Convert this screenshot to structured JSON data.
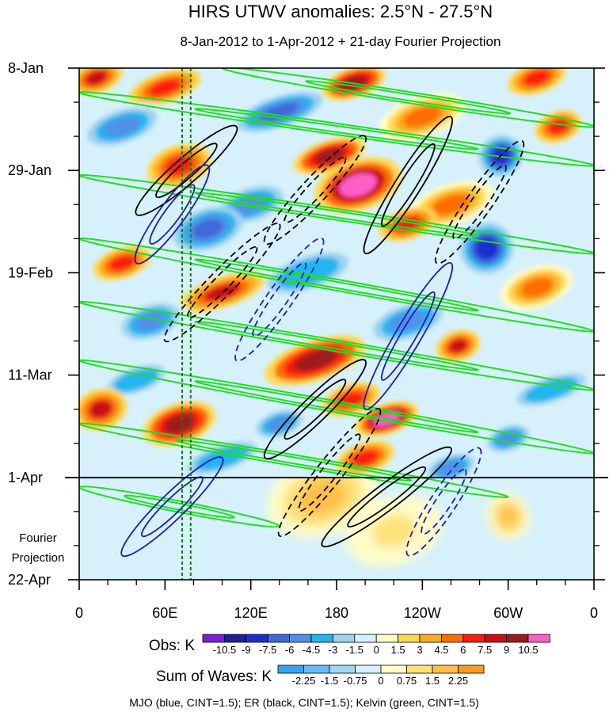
{
  "chart_data": {
    "type": "heatmap",
    "title": "HIRS UTWV anomalies: 2.5°N - 27.5°N",
    "subtitle": "8-Jan-2012 to 1-Apr-2012 + 21-day Fourier Projection",
    "x_tick_labels": [
      "0",
      "60E",
      "120E",
      "180",
      "120W",
      "60W",
      "0"
    ],
    "x_tick_degrees_east": [
      0,
      60,
      120,
      180,
      240,
      300,
      360
    ],
    "x_range_degrees_east": [
      0,
      360
    ],
    "y_tick_labels": [
      "8-Jan",
      "29-Jan",
      "19-Feb",
      "11-Mar",
      "1-Apr",
      "22-Apr"
    ],
    "y_tick_days_since_8jan": [
      0,
      21,
      42,
      63,
      84,
      105
    ],
    "y_range_days_since_8jan": [
      0,
      105
    ],
    "observation_end_day": 84,
    "fourier_projection_label": [
      "Fourier",
      "Projection"
    ],
    "dashed_reference_longitudes_east": [
      72,
      78
    ],
    "obs_colorbar": {
      "label": "Obs: K",
      "levels": [
        "-10.5",
        "-9",
        "-7.5",
        "-6",
        "-4.5",
        "-3",
        "-1.5",
        "0",
        "1.5",
        "3",
        "4.5",
        "6",
        "7.5",
        "9",
        "10.5"
      ],
      "colors": [
        "#7a1fd6",
        "#1e1e9c",
        "#1f2fcd",
        "#3f69d9",
        "#4f91e8",
        "#22b5ee",
        "#9fd3f1",
        "#d6f1fb",
        "#fffcc8",
        "#ffd84f",
        "#ffaa22",
        "#ff6d00",
        "#ff1a10",
        "#cc0f15",
        "#9c1b1b",
        "#ff5fc6"
      ]
    },
    "waves_colorbar": {
      "label": "Sum of Waves: K",
      "levels": [
        "-2.25",
        "-1.5",
        "-0.75",
        "0",
        "0.75",
        "1.5",
        "2.25"
      ],
      "colors": [
        "#3aa3ee",
        "#67bdf3",
        "#9fd6f5",
        "#d6f1fb",
        "#fffcc8",
        "#ffe17a",
        "#ffc04a",
        "#ff9a22"
      ]
    },
    "contours": [
      {
        "name": "MJO",
        "color": "#1c1cb4",
        "cint": 1.5
      },
      {
        "name": "ER",
        "color": "#000000",
        "cint": 1.5
      },
      {
        "name": "Kelvin",
        "color": "#22dd22",
        "cint": 1.5
      }
    ],
    "caption": "MJO (blue, CINT=1.5); ER (black, CINT=1.5); Kelvin (green, CINT=1.5)",
    "anomaly_features": [
      {
        "lon": 12,
        "day": 2,
        "value": 7.5,
        "rx": 18,
        "ry": 3
      },
      {
        "lon": 60,
        "day": 4,
        "value": 6,
        "rx": 25,
        "ry": 3
      },
      {
        "lon": 192,
        "day": 3,
        "value": 9,
        "rx": 22,
        "ry": 3
      },
      {
        "lon": 320,
        "day": 2,
        "value": 6,
        "rx": 20,
        "ry": 3
      },
      {
        "lon": 30,
        "day": 12,
        "value": -6,
        "rx": 30,
        "ry": 4
      },
      {
        "lon": 140,
        "day": 9,
        "value": -7.5,
        "rx": 30,
        "ry": 3
      },
      {
        "lon": 240,
        "day": 10,
        "value": 4.5,
        "rx": 30,
        "ry": 4
      },
      {
        "lon": 335,
        "day": 12,
        "value": 6,
        "rx": 16,
        "ry": 3
      },
      {
        "lon": 175,
        "day": 18,
        "value": 9,
        "rx": 25,
        "ry": 3
      },
      {
        "lon": 295,
        "day": 18,
        "value": -9,
        "rx": 15,
        "ry": 4
      },
      {
        "lon": 70,
        "day": 20,
        "value": 6,
        "rx": 22,
        "ry": 4
      },
      {
        "lon": 195,
        "day": 24,
        "value": 10.5,
        "rx": 30,
        "ry": 5
      },
      {
        "lon": 120,
        "day": 28,
        "value": -6,
        "rx": 28,
        "ry": 4
      },
      {
        "lon": 260,
        "day": 28,
        "value": 4.5,
        "rx": 30,
        "ry": 4
      },
      {
        "lon": 230,
        "day": 32,
        "value": 6,
        "rx": 20,
        "ry": 3
      },
      {
        "lon": 90,
        "day": 33,
        "value": -7.5,
        "rx": 24,
        "ry": 4
      },
      {
        "lon": 285,
        "day": 37,
        "value": -9,
        "rx": 18,
        "ry": 5
      },
      {
        "lon": 30,
        "day": 40,
        "value": 6,
        "rx": 20,
        "ry": 3
      },
      {
        "lon": 160,
        "day": 42,
        "value": -4.5,
        "rx": 35,
        "ry": 4
      },
      {
        "lon": 100,
        "day": 46,
        "value": 7.5,
        "rx": 30,
        "ry": 3
      },
      {
        "lon": 320,
        "day": 45,
        "value": 4.5,
        "rx": 25,
        "ry": 4
      },
      {
        "lon": 50,
        "day": 52,
        "value": -6,
        "rx": 25,
        "ry": 4
      },
      {
        "lon": 230,
        "day": 52,
        "value": -6,
        "rx": 30,
        "ry": 4
      },
      {
        "lon": 165,
        "day": 60,
        "value": 9,
        "rx": 35,
        "ry": 4
      },
      {
        "lon": 265,
        "day": 57,
        "value": 7.5,
        "rx": 15,
        "ry": 3
      },
      {
        "lon": 40,
        "day": 64,
        "value": -4.5,
        "rx": 25,
        "ry": 3
      },
      {
        "lon": 330,
        "day": 66,
        "value": -4.5,
        "rx": 30,
        "ry": 3
      },
      {
        "lon": 190,
        "day": 68,
        "value": 6,
        "rx": 20,
        "ry": 3
      },
      {
        "lon": 15,
        "day": 70,
        "value": 7.5,
        "rx": 18,
        "ry": 4
      },
      {
        "lon": 70,
        "day": 73,
        "value": 9,
        "rx": 25,
        "ry": 4
      },
      {
        "lon": 215,
        "day": 72,
        "value": 10.5,
        "rx": 22,
        "ry": 3
      },
      {
        "lon": 140,
        "day": 73,
        "value": -6,
        "rx": 20,
        "ry": 3
      },
      {
        "lon": 300,
        "day": 76,
        "value": -6,
        "rx": 18,
        "ry": 3
      },
      {
        "lon": 100,
        "day": 80,
        "value": -4.5,
        "rx": 30,
        "ry": 3
      },
      {
        "lon": 200,
        "day": 80,
        "value": 6,
        "rx": 20,
        "ry": 3
      },
      {
        "lon": 260,
        "day": 82,
        "value": -6,
        "rx": 20,
        "ry": 3
      },
      {
        "lon": 170,
        "day": 88,
        "value": 1.5,
        "rx": 40,
        "ry": 8
      },
      {
        "lon": 50,
        "day": 96,
        "value": -0.75,
        "rx": 50,
        "ry": 6
      },
      {
        "lon": 220,
        "day": 95,
        "value": 0.75,
        "rx": 35,
        "ry": 7
      },
      {
        "lon": 300,
        "day": 92,
        "value": 1.5,
        "rx": 15,
        "ry": 5
      },
      {
        "lon": 320,
        "day": 100,
        "value": -0.75,
        "rx": 40,
        "ry": 5
      }
    ],
    "contour_tracks": [
      {
        "wave": "Kelvin",
        "sign": "pos",
        "lon0": 0,
        "day0": 5,
        "lon1": 360,
        "day1": 20
      },
      {
        "wave": "Kelvin",
        "sign": "pos",
        "lon0": 0,
        "day0": 22,
        "lon1": 360,
        "day1": 38
      },
      {
        "wave": "Kelvin",
        "sign": "pos",
        "lon0": 0,
        "day0": 35,
        "lon1": 360,
        "day1": 54
      },
      {
        "wave": "Kelvin",
        "sign": "pos",
        "lon0": 0,
        "day0": 48,
        "lon1": 360,
        "day1": 66
      },
      {
        "wave": "Kelvin",
        "sign": "pos",
        "lon0": 0,
        "day0": 60,
        "lon1": 360,
        "day1": 79
      },
      {
        "wave": "Kelvin",
        "sign": "pos",
        "lon0": 0,
        "day0": 73,
        "lon1": 300,
        "day1": 88
      },
      {
        "wave": "Kelvin",
        "sign": "pos",
        "lon0": 0,
        "day0": 86,
        "lon1": 140,
        "day1": 94
      },
      {
        "wave": "Kelvin",
        "sign": "pos",
        "lon0": 100,
        "day0": 0,
        "lon1": 360,
        "day1": 12
      },
      {
        "wave": "ER",
        "sign": "pos",
        "lon0": 40,
        "day0": 30,
        "lon1": 110,
        "day1": 12
      },
      {
        "wave": "ER",
        "sign": "pos",
        "lon0": 200,
        "day0": 38,
        "lon1": 260,
        "day1": 10
      },
      {
        "wave": "ER",
        "sign": "pos",
        "lon0": 130,
        "day0": 80,
        "lon1": 200,
        "day1": 60
      },
      {
        "wave": "ER",
        "sign": "pos",
        "lon0": 170,
        "day0": 98,
        "lon1": 260,
        "day1": 78
      },
      {
        "wave": "ER",
        "sign": "neg",
        "lon0": 130,
        "day0": 36,
        "lon1": 200,
        "day1": 14
      },
      {
        "wave": "ER",
        "sign": "neg",
        "lon0": 250,
        "day0": 40,
        "lon1": 310,
        "day1": 15
      },
      {
        "wave": "ER",
        "sign": "neg",
        "lon0": 60,
        "day0": 56,
        "lon1": 140,
        "day1": 32
      },
      {
        "wave": "ER",
        "sign": "neg",
        "lon0": 140,
        "day0": 96,
        "lon1": 210,
        "day1": 70
      },
      {
        "wave": "MJO",
        "sign": "pos",
        "lon0": 40,
        "day0": 40,
        "lon1": 90,
        "day1": 20
      },
      {
        "wave": "MJO",
        "sign": "pos",
        "lon0": 200,
        "day0": 70,
        "lon1": 260,
        "day1": 40
      },
      {
        "wave": "MJO",
        "sign": "pos",
        "lon0": 30,
        "day0": 100,
        "lon1": 100,
        "day1": 80
      },
      {
        "wave": "MJO",
        "sign": "neg",
        "lon0": 110,
        "day0": 60,
        "lon1": 170,
        "day1": 35
      },
      {
        "wave": "MJO",
        "sign": "neg",
        "lon0": 230,
        "day0": 100,
        "lon1": 280,
        "day1": 78
      }
    ]
  }
}
